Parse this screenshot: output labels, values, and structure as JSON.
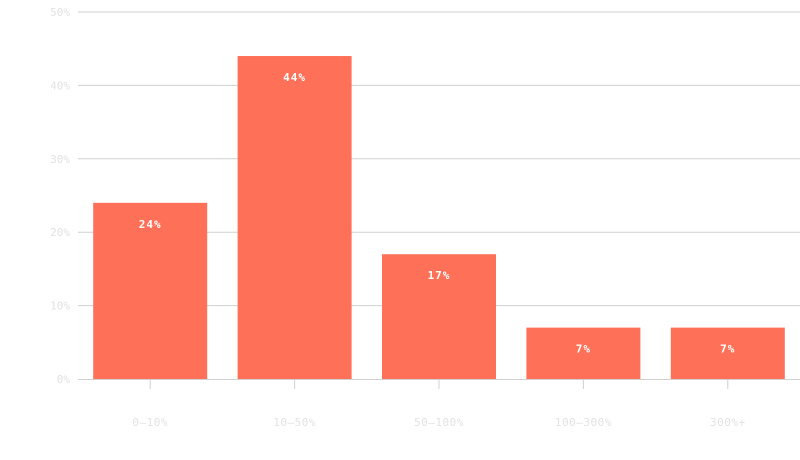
{
  "chart_data": {
    "type": "bar",
    "categories": [
      "0–10%",
      "10–50%",
      "50–100%",
      "100–300%",
      "300%+"
    ],
    "values": [
      24,
      44,
      17,
      7,
      7
    ],
    "data_labels": [
      "24%",
      "44%",
      "17%",
      "7%",
      "7%"
    ],
    "y_ticks": [
      0,
      10,
      20,
      30,
      40,
      50
    ],
    "y_tick_labels": [
      "0%",
      "10%",
      "20%",
      "30%",
      "40%",
      "50%"
    ],
    "ylim": [
      0,
      50
    ],
    "grid": true,
    "colors": {
      "bar": "#ff7058",
      "bar_label": "#ffffff",
      "grid": "#d0d0d0",
      "tick_label": "#e2e2e2"
    }
  }
}
